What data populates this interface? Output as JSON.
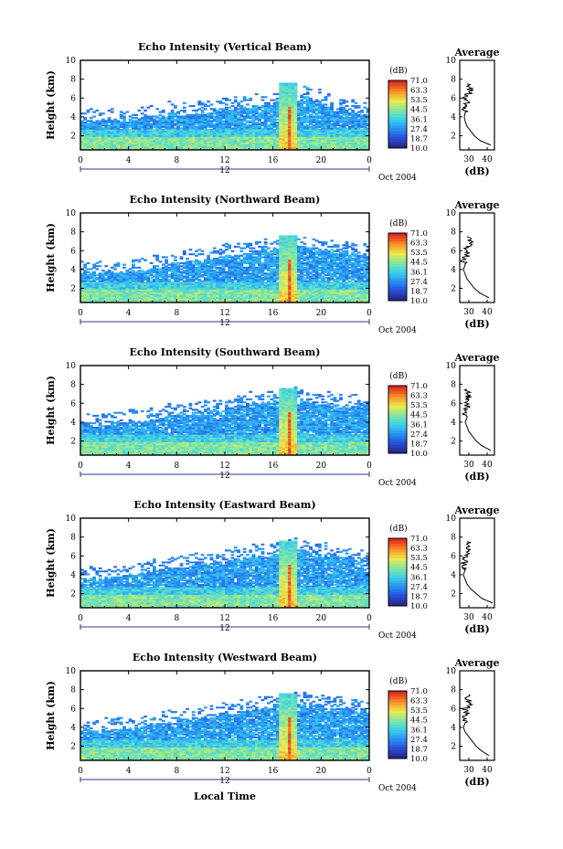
{
  "chart_data": [
    {
      "type": "heatmap",
      "title": "Echo Intensity (Vertical Beam)",
      "ylabel": "Height (km)",
      "x_ticks": [
        "0",
        "4",
        "8",
        "12",
        "16",
        "20",
        "0"
      ],
      "y_ticks": [
        "2",
        "4",
        "6",
        "8",
        "10"
      ],
      "xlim": [
        0,
        24
      ],
      "ylim": [
        0.5,
        10
      ],
      "date_marker": "12",
      "date_label": "Oct 2004",
      "colorbar": {
        "unit": "(dB)",
        "ticks": [
          "71.0",
          "63.3",
          "53.5",
          "44.5",
          "36.1",
          "27.4",
          "18.7",
          "10.0"
        ]
      },
      "average_profile": {
        "title": "Average",
        "xlabel": "(dB)",
        "x_ticks": [
          "30",
          "40"
        ],
        "y_ticks": [
          "2",
          "4",
          "6",
          "8",
          "10"
        ],
        "heights": [
          1.0,
          1.5,
          2.0,
          2.5,
          3.0,
          3.5,
          4.0,
          4.5,
          5.0,
          5.5,
          6.0,
          6.5,
          7.0,
          7.5
        ],
        "values": [
          42,
          36,
          33,
          31,
          29,
          28,
          27.5,
          28,
          27,
          29,
          28,
          30,
          31,
          29
        ]
      },
      "layer_top_km": [
        3.5,
        3.6,
        3.6,
        3.5,
        3.6,
        3.8,
        4.0,
        4.3,
        4.2,
        4.3,
        4.5,
        4.6,
        4.8,
        5.0,
        5.1,
        5.3,
        5.5,
        5.9,
        6.0,
        5.6,
        5.1,
        4.8,
        4.5,
        4.3,
        4.2
      ],
      "rain_column": {
        "start_h": 16.5,
        "end_h": 18.0,
        "top_km": 7.5
      }
    },
    {
      "type": "heatmap",
      "title": "Echo Intensity (Northward Beam)",
      "ylabel": "Height (km)",
      "x_ticks": [
        "0",
        "4",
        "8",
        "12",
        "16",
        "20",
        "0"
      ],
      "y_ticks": [
        "2",
        "4",
        "6",
        "8",
        "10"
      ],
      "xlim": [
        0,
        24
      ],
      "ylim": [
        0.5,
        10
      ],
      "date_marker": "12",
      "date_label": "Oct 2004",
      "colorbar": {
        "unit": "(dB)",
        "ticks": [
          "71.0",
          "63.3",
          "53.5",
          "44.5",
          "36.1",
          "27.4",
          "18.7",
          "10.0"
        ]
      },
      "average_profile": {
        "title": "Average",
        "xlabel": "(dB)",
        "x_ticks": [
          "30",
          "40"
        ],
        "y_ticks": [
          "2",
          "4",
          "6",
          "8",
          "10"
        ],
        "heights": [
          1.0,
          1.5,
          2.0,
          2.5,
          3.0,
          3.5,
          4.0,
          4.5,
          5.0,
          5.5,
          6.0,
          6.5,
          7.0,
          7.5
        ],
        "values": [
          41,
          36,
          33,
          31,
          29,
          28,
          27,
          28,
          27,
          29,
          28,
          30,
          31,
          29
        ]
      },
      "layer_top_km": [
        3.6,
        3.6,
        3.7,
        3.7,
        3.8,
        4.0,
        4.2,
        4.5,
        4.6,
        4.8,
        4.9,
        5.2,
        5.4,
        5.6,
        5.8,
        6.0,
        6.2,
        6.6,
        6.4,
        6.2,
        6.0,
        5.8,
        5.6,
        5.5,
        5.6
      ],
      "rain_column": {
        "start_h": 16.5,
        "end_h": 18.0,
        "top_km": 7.5
      }
    },
    {
      "type": "heatmap",
      "title": "Echo Intensity (Southward Beam)",
      "ylabel": "Height (km)",
      "x_ticks": [
        "0",
        "4",
        "8",
        "12",
        "16",
        "20",
        "0"
      ],
      "y_ticks": [
        "2",
        "4",
        "6",
        "8",
        "10"
      ],
      "xlim": [
        0,
        24
      ],
      "ylim": [
        0.5,
        10
      ],
      "date_marker": "12",
      "date_label": "Oct 2004",
      "colorbar": {
        "unit": "(dB)",
        "ticks": [
          "71.0",
          "63.3",
          "53.5",
          "44.5",
          "36.1",
          "27.4",
          "18.7",
          "10.0"
        ]
      },
      "average_profile": {
        "title": "Average",
        "xlabel": "(dB)",
        "x_ticks": [
          "30",
          "40"
        ],
        "y_ticks": [
          "2",
          "4",
          "6",
          "8",
          "10"
        ],
        "heights": [
          1.0,
          1.5,
          2.0,
          2.5,
          3.0,
          3.5,
          4.0,
          4.5,
          5.0,
          5.5,
          6.0,
          6.5,
          7.0,
          7.5
        ],
        "values": [
          42,
          37,
          34,
          32,
          30,
          29,
          28,
          29,
          27,
          29,
          28,
          30,
          29,
          29
        ]
      },
      "layer_top_km": [
        3.6,
        3.7,
        3.7,
        3.8,
        3.9,
        4.1,
        4.3,
        4.5,
        4.7,
        4.9,
        5.0,
        5.2,
        5.4,
        5.6,
        5.8,
        6.0,
        6.2,
        6.5,
        6.3,
        6.0,
        5.8,
        5.7,
        5.6,
        5.7,
        5.8
      ],
      "rain_column": {
        "start_h": 16.5,
        "end_h": 18.0,
        "top_km": 7.5
      }
    },
    {
      "type": "heatmap",
      "title": "Echo Intensity (Eastward Beam)",
      "ylabel": "Height (km)",
      "x_ticks": [
        "0",
        "4",
        "8",
        "12",
        "16",
        "20",
        "0"
      ],
      "y_ticks": [
        "2",
        "4",
        "6",
        "8",
        "10"
      ],
      "xlim": [
        0,
        24
      ],
      "ylim": [
        0.5,
        10
      ],
      "date_marker": "12",
      "date_label": "Oct 2004",
      "colorbar": {
        "unit": "(dB)",
        "ticks": [
          "71.0",
          "63.3",
          "53.5",
          "44.5",
          "36.1",
          "27.4",
          "18.7",
          "10.0"
        ]
      },
      "average_profile": {
        "title": "Average",
        "xlabel": "(dB)",
        "x_ticks": [
          "30",
          "40"
        ],
        "y_ticks": [
          "2",
          "4",
          "6",
          "8",
          "10"
        ],
        "heights": [
          1.0,
          1.5,
          2.0,
          2.5,
          3.0,
          3.5,
          4.0,
          4.5,
          5.0,
          5.5,
          6.0,
          6.5,
          7.0,
          7.5
        ],
        "values": [
          43,
          37,
          34,
          31,
          29,
          28,
          27,
          28,
          27,
          28,
          28,
          29,
          30,
          29
        ]
      },
      "layer_top_km": [
        3.5,
        3.6,
        3.7,
        3.8,
        4.0,
        4.2,
        4.4,
        4.6,
        4.8,
        5.0,
        5.1,
        5.3,
        5.5,
        5.7,
        5.9,
        6.1,
        6.4,
        6.6,
        6.5,
        6.2,
        6.0,
        5.8,
        5.6,
        5.5,
        5.6
      ],
      "rain_column": {
        "start_h": 16.5,
        "end_h": 18.0,
        "top_km": 7.5
      }
    },
    {
      "type": "heatmap",
      "title": "Echo Intensity (Westward Beam)",
      "ylabel": "Height (km)",
      "xlabel": "Local Time",
      "x_ticks": [
        "0",
        "4",
        "8",
        "12",
        "16",
        "20",
        "0"
      ],
      "y_ticks": [
        "2",
        "4",
        "6",
        "8",
        "10"
      ],
      "xlim": [
        0,
        24
      ],
      "ylim": [
        0.5,
        10
      ],
      "date_marker": "12",
      "date_label": "Oct 2004",
      "colorbar": {
        "unit": "(dB)",
        "ticks": [
          "71.0",
          "63.3",
          "53.5",
          "44.5",
          "36.1",
          "27.4",
          "18.7",
          "10.0"
        ]
      },
      "average_profile": {
        "title": "Average",
        "xlabel": "(dB)",
        "x_ticks": [
          "30",
          "40"
        ],
        "y_ticks": [
          "2",
          "4",
          "6",
          "8",
          "10"
        ],
        "heights": [
          1.0,
          1.5,
          2.0,
          2.5,
          3.0,
          3.5,
          4.0,
          4.5,
          5.0,
          5.5,
          6.0,
          6.5,
          7.0,
          7.5
        ],
        "values": [
          41,
          37,
          34,
          32,
          30,
          28,
          27,
          28,
          27,
          29,
          28,
          31,
          29,
          30
        ]
      },
      "layer_top_km": [
        3.5,
        3.6,
        3.7,
        3.8,
        3.9,
        4.1,
        4.3,
        4.5,
        4.7,
        4.8,
        5.0,
        5.2,
        5.4,
        5.6,
        5.8,
        6.0,
        6.2,
        6.5,
        6.4,
        6.2,
        6.0,
        5.9,
        5.8,
        5.6,
        5.7
      ],
      "rain_column": {
        "start_h": 16.5,
        "end_h": 18.0,
        "top_km": 7.5
      }
    }
  ]
}
